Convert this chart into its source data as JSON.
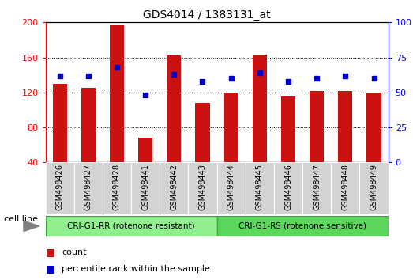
{
  "title": "GDS4014 / 1383131_at",
  "samples": [
    "GSM498426",
    "GSM498427",
    "GSM498428",
    "GSM498441",
    "GSM498442",
    "GSM498443",
    "GSM498444",
    "GSM498445",
    "GSM498446",
    "GSM498447",
    "GSM498448",
    "GSM498449"
  ],
  "count_values": [
    130,
    125,
    197,
    68,
    162,
    108,
    120,
    163,
    115,
    122,
    122,
    120
  ],
  "percentile_values": [
    62,
    62,
    68,
    48,
    63,
    58,
    60,
    64,
    58,
    60,
    62,
    60
  ],
  "ylim_left": [
    40,
    200
  ],
  "ylim_right": [
    0,
    100
  ],
  "yticks_left": [
    40,
    80,
    120,
    160,
    200
  ],
  "yticks_right": [
    0,
    25,
    50,
    75,
    100
  ],
  "bar_color": "#cc1111",
  "marker_color": "#0000cc",
  "plot_bg": "#ffffff",
  "legend_count_label": "count",
  "legend_pct_label": "percentile rank within the sample",
  "cell_line_label": "cell line",
  "group1_label": "CRI-G1-RR (rotenone resistant)",
  "group2_label": "CRI-G1-RS (rotenone sensitive)",
  "group1_color": "#90ee90",
  "group2_color": "#5cd65c",
  "xlabel_bg": "#d3d3d3",
  "bar_width": 0.5
}
